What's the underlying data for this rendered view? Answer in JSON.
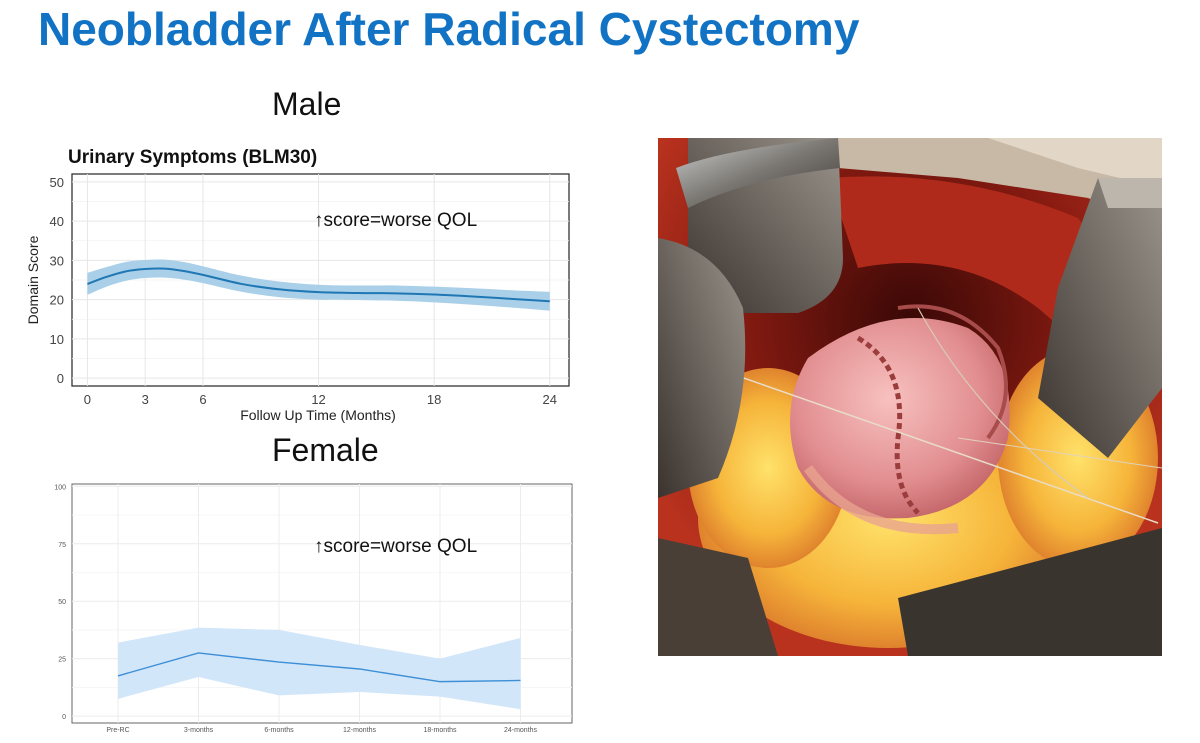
{
  "slide": {
    "title": "Neobladder After Radical Cystectomy",
    "male_heading": "Male",
    "female_heading": "Female"
  },
  "colors": {
    "title": "#1273c4",
    "male_line": "#1f77b4",
    "male_band": "#a9cfe9",
    "female_line": "#3d8fd6",
    "female_band": "#d2e6fa"
  },
  "chart_data": [
    {
      "type": "line",
      "title": "Urinary Symptoms (BLM30)",
      "xlabel": "Follow Up Time (Months)",
      "ylabel": "Domain Score",
      "annotation": "↑score=worse QOL",
      "xticks": [
        0,
        3,
        6,
        12,
        18,
        24
      ],
      "yticks": [
        0,
        10,
        20,
        30,
        40,
        50
      ],
      "xlim": [
        -0.8,
        25
      ],
      "ylim": [
        -2,
        52
      ],
      "grid": true,
      "series": [
        {
          "x": [
            0,
            1,
            2,
            3,
            4,
            5,
            6,
            8,
            10,
            12,
            14,
            16,
            18,
            20,
            22,
            24
          ],
          "y": [
            24,
            25.8,
            27.2,
            27.8,
            27.9,
            27.3,
            26.3,
            24,
            22.6,
            21.9,
            21.7,
            21.6,
            21.3,
            20.8,
            20.2,
            19.6
          ],
          "lower": [
            21.2,
            23.3,
            24.8,
            25.5,
            25.6,
            25.1,
            24.2,
            22,
            20.6,
            20,
            19.9,
            19.7,
            19.3,
            18.7,
            18,
            17.2
          ],
          "upper": [
            26.8,
            28.3,
            29.6,
            30.1,
            30.2,
            29.6,
            28.5,
            26.1,
            24.6,
            23.8,
            23.6,
            23.6,
            23.3,
            22.9,
            22.4,
            22
          ]
        }
      ]
    },
    {
      "type": "line",
      "annotation": "↑score=worse QOL",
      "categories": [
        "Pre-RC",
        "3-months",
        "6-months",
        "12-months",
        "18-months",
        "24-months"
      ],
      "yticks": [
        0,
        25,
        50,
        75,
        100
      ],
      "ylim": [
        -3,
        101
      ],
      "grid": true,
      "series": [
        {
          "values": [
            17.5,
            27.5,
            23.5,
            20.5,
            15,
            15.5
          ],
          "lower": [
            7.5,
            17,
            9,
            10.5,
            8.5,
            3
          ],
          "upper": [
            32,
            38.5,
            37.5,
            31,
            25,
            34
          ]
        }
      ]
    }
  ]
}
